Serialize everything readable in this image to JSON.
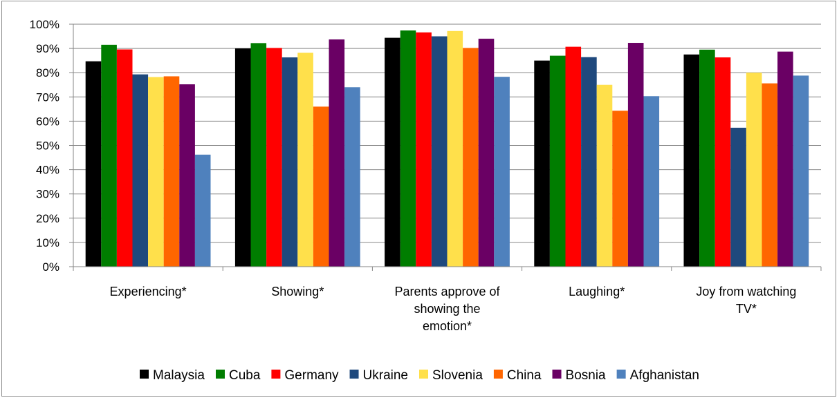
{
  "chart_data": {
    "type": "bar",
    "title": "",
    "xlabel": "",
    "ylabel": "",
    "ylim": [
      0,
      100
    ],
    "y_ticks": [
      "0%",
      "10%",
      "20%",
      "30%",
      "40%",
      "50%",
      "60%",
      "70%",
      "80%",
      "90%",
      "100%"
    ],
    "grid": "horizontal",
    "legend_position": "bottom",
    "categories": [
      [
        "Experiencing*"
      ],
      [
        "Showing*"
      ],
      [
        "Parents approve of",
        "showing the",
        "emotion*"
      ],
      [
        "Laughing*"
      ],
      [
        "Joy from watching",
        "TV*"
      ]
    ],
    "series": [
      {
        "name": "Malaysia",
        "color": "#000000",
        "values": [
          84.7,
          90.0,
          94.4,
          85.0,
          87.5
        ]
      },
      {
        "name": "Cuba",
        "color": "#007d00",
        "values": [
          91.5,
          92.2,
          97.4,
          87.0,
          89.5
        ]
      },
      {
        "name": "Germany",
        "color": "#ff0000",
        "values": [
          89.6,
          90.2,
          96.6,
          90.7,
          86.3
        ]
      },
      {
        "name": "Ukraine",
        "color": "#1f497d",
        "values": [
          79.3,
          86.3,
          95.0,
          86.4,
          57.3
        ]
      },
      {
        "name": "Slovenia",
        "color": "#ffe04b",
        "values": [
          78.2,
          88.2,
          97.2,
          75.0,
          80.0
        ]
      },
      {
        "name": "China",
        "color": "#ff6600",
        "values": [
          78.5,
          66.0,
          90.2,
          64.3,
          75.6
        ]
      },
      {
        "name": "Bosnia",
        "color": "#6a0064",
        "values": [
          75.2,
          93.7,
          94.0,
          92.3,
          88.7
        ]
      },
      {
        "name": "Afghanistan",
        "color": "#4f81bd",
        "values": [
          46.2,
          74.0,
          78.3,
          70.3,
          78.8
        ]
      }
    ]
  }
}
